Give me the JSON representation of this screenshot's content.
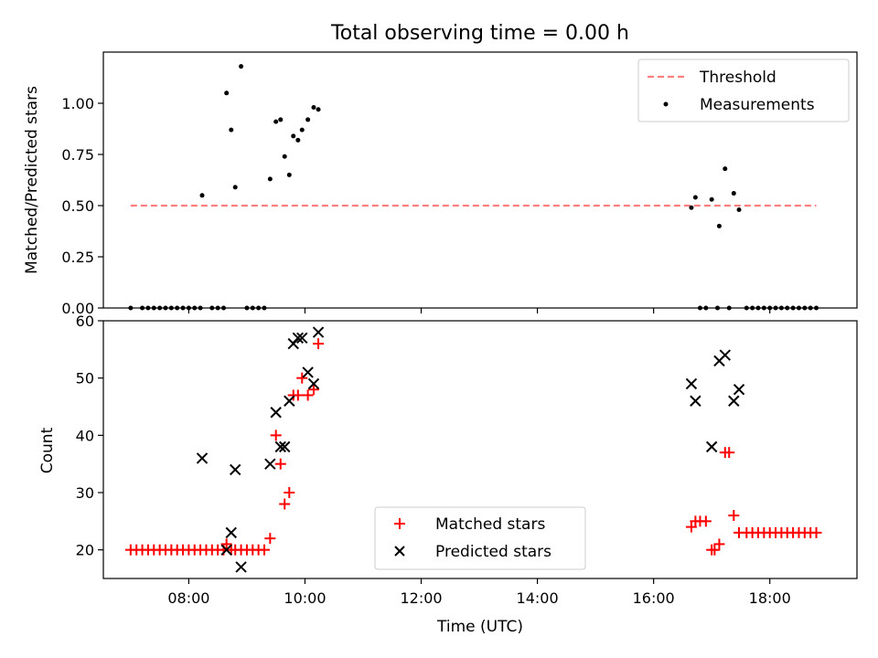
{
  "figure": {
    "title": "Total observing time = 0.00 h"
  },
  "chart_data": [
    {
      "type": "scatter",
      "ylabel": "Matched/Predicted stars",
      "xlim": [
        6.53,
        19.5
      ],
      "ylim": [
        0,
        1.25
      ],
      "yticks": [
        "0.00",
        "0.25",
        "0.50",
        "0.75",
        "1.00"
      ],
      "grid": false,
      "legend_position": "top-right",
      "threshold": {
        "name": "Threshold",
        "value": 0.5,
        "x_start": 7.0,
        "x_end": 18.8,
        "color": "#ff7f7f"
      },
      "series": [
        {
          "name": "Measurements",
          "color": "#000000",
          "points": [
            [
              7.0,
              0
            ],
            [
              7.2,
              0
            ],
            [
              7.3,
              0
            ],
            [
              7.4,
              0
            ],
            [
              7.5,
              0
            ],
            [
              7.6,
              0
            ],
            [
              7.7,
              0
            ],
            [
              7.8,
              0
            ],
            [
              7.9,
              0
            ],
            [
              8.0,
              0
            ],
            [
              8.1,
              0
            ],
            [
              8.2,
              0
            ],
            [
              8.23,
              0.55
            ],
            [
              8.4,
              0
            ],
            [
              8.5,
              0
            ],
            [
              8.6,
              0
            ],
            [
              8.65,
              1.05
            ],
            [
              8.73,
              0.87
            ],
            [
              8.8,
              0.59
            ],
            [
              8.9,
              1.18
            ],
            [
              9.0,
              0
            ],
            [
              9.1,
              0
            ],
            [
              9.2,
              0
            ],
            [
              9.3,
              0
            ],
            [
              9.4,
              0.63
            ],
            [
              9.5,
              0.91
            ],
            [
              9.58,
              0.92
            ],
            [
              9.65,
              0.74
            ],
            [
              9.73,
              0.65
            ],
            [
              9.8,
              0.84
            ],
            [
              9.88,
              0.82
            ],
            [
              9.95,
              0.87
            ],
            [
              10.05,
              0.92
            ],
            [
              10.15,
              0.98
            ],
            [
              10.23,
              0.97
            ],
            [
              16.65,
              0.49
            ],
            [
              16.72,
              0.54
            ],
            [
              16.8,
              0
            ],
            [
              16.9,
              0
            ],
            [
              17.0,
              0.53
            ],
            [
              17.1,
              0
            ],
            [
              17.13,
              0.4
            ],
            [
              17.23,
              0.68
            ],
            [
              17.3,
              0
            ],
            [
              17.38,
              0.56
            ],
            [
              17.47,
              0.48
            ],
            [
              17.6,
              0
            ],
            [
              17.7,
              0
            ],
            [
              17.8,
              0
            ],
            [
              17.9,
              0
            ],
            [
              18.0,
              0
            ],
            [
              18.1,
              0
            ],
            [
              18.2,
              0
            ],
            [
              18.3,
              0
            ],
            [
              18.4,
              0
            ],
            [
              18.5,
              0
            ],
            [
              18.6,
              0
            ],
            [
              18.7,
              0
            ],
            [
              18.8,
              0
            ]
          ]
        }
      ]
    },
    {
      "type": "scatter",
      "xlabel": "Time (UTC)",
      "ylabel": "Count",
      "xlim": [
        6.53,
        19.5
      ],
      "ylim": [
        15,
        60
      ],
      "xticks": [
        "08:00",
        "10:00",
        "12:00",
        "14:00",
        "16:00",
        "18:00"
      ],
      "yticks": [
        "20",
        "30",
        "40",
        "50",
        "60"
      ],
      "grid": false,
      "legend_position": "bottom-center",
      "series": [
        {
          "name": "Matched stars",
          "marker": "plus",
          "color": "#ff0000",
          "points": [
            [
              7.0,
              20
            ],
            [
              7.1,
              20
            ],
            [
              7.2,
              20
            ],
            [
              7.3,
              20
            ],
            [
              7.4,
              20
            ],
            [
              7.5,
              20
            ],
            [
              7.6,
              20
            ],
            [
              7.7,
              20
            ],
            [
              7.8,
              20
            ],
            [
              7.9,
              20
            ],
            [
              8.0,
              20
            ],
            [
              8.1,
              20
            ],
            [
              8.2,
              20
            ],
            [
              8.3,
              20
            ],
            [
              8.4,
              20
            ],
            [
              8.5,
              20
            ],
            [
              8.6,
              20
            ],
            [
              8.65,
              21
            ],
            [
              8.73,
              20
            ],
            [
              8.8,
              20
            ],
            [
              8.9,
              20
            ],
            [
              9.0,
              20
            ],
            [
              9.1,
              20
            ],
            [
              9.2,
              20
            ],
            [
              9.3,
              20
            ],
            [
              9.4,
              22
            ],
            [
              9.5,
              40
            ],
            [
              9.58,
              35
            ],
            [
              9.65,
              28
            ],
            [
              9.73,
              30
            ],
            [
              9.8,
              47
            ],
            [
              9.88,
              47
            ],
            [
              9.95,
              50
            ],
            [
              10.05,
              47
            ],
            [
              10.15,
              48
            ],
            [
              10.23,
              56
            ],
            [
              16.65,
              24
            ],
            [
              16.72,
              25
            ],
            [
              16.8,
              25
            ],
            [
              16.9,
              25
            ],
            [
              17.0,
              20
            ],
            [
              17.05,
              20
            ],
            [
              17.13,
              21
            ],
            [
              17.23,
              37
            ],
            [
              17.3,
              37
            ],
            [
              17.38,
              26
            ],
            [
              17.47,
              23
            ],
            [
              17.6,
              23
            ],
            [
              17.7,
              23
            ],
            [
              17.8,
              23
            ],
            [
              17.9,
              23
            ],
            [
              18.0,
              23
            ],
            [
              18.1,
              23
            ],
            [
              18.2,
              23
            ],
            [
              18.3,
              23
            ],
            [
              18.4,
              23
            ],
            [
              18.5,
              23
            ],
            [
              18.6,
              23
            ],
            [
              18.7,
              23
            ],
            [
              18.8,
              23
            ]
          ]
        },
        {
          "name": "Predicted stars",
          "marker": "x",
          "color": "#000000",
          "points": [
            [
              8.23,
              36
            ],
            [
              8.65,
              20
            ],
            [
              8.73,
              23
            ],
            [
              8.8,
              34
            ],
            [
              8.9,
              17
            ],
            [
              9.4,
              35
            ],
            [
              9.5,
              44
            ],
            [
              9.58,
              38
            ],
            [
              9.65,
              38
            ],
            [
              9.73,
              46
            ],
            [
              9.8,
              56
            ],
            [
              9.88,
              57
            ],
            [
              9.95,
              57
            ],
            [
              10.05,
              51
            ],
            [
              10.15,
              49
            ],
            [
              10.23,
              58
            ],
            [
              16.65,
              49
            ],
            [
              16.72,
              46
            ],
            [
              17.0,
              38
            ],
            [
              17.13,
              53
            ],
            [
              17.23,
              54
            ],
            [
              17.38,
              46
            ],
            [
              17.47,
              48
            ]
          ]
        }
      ]
    }
  ]
}
